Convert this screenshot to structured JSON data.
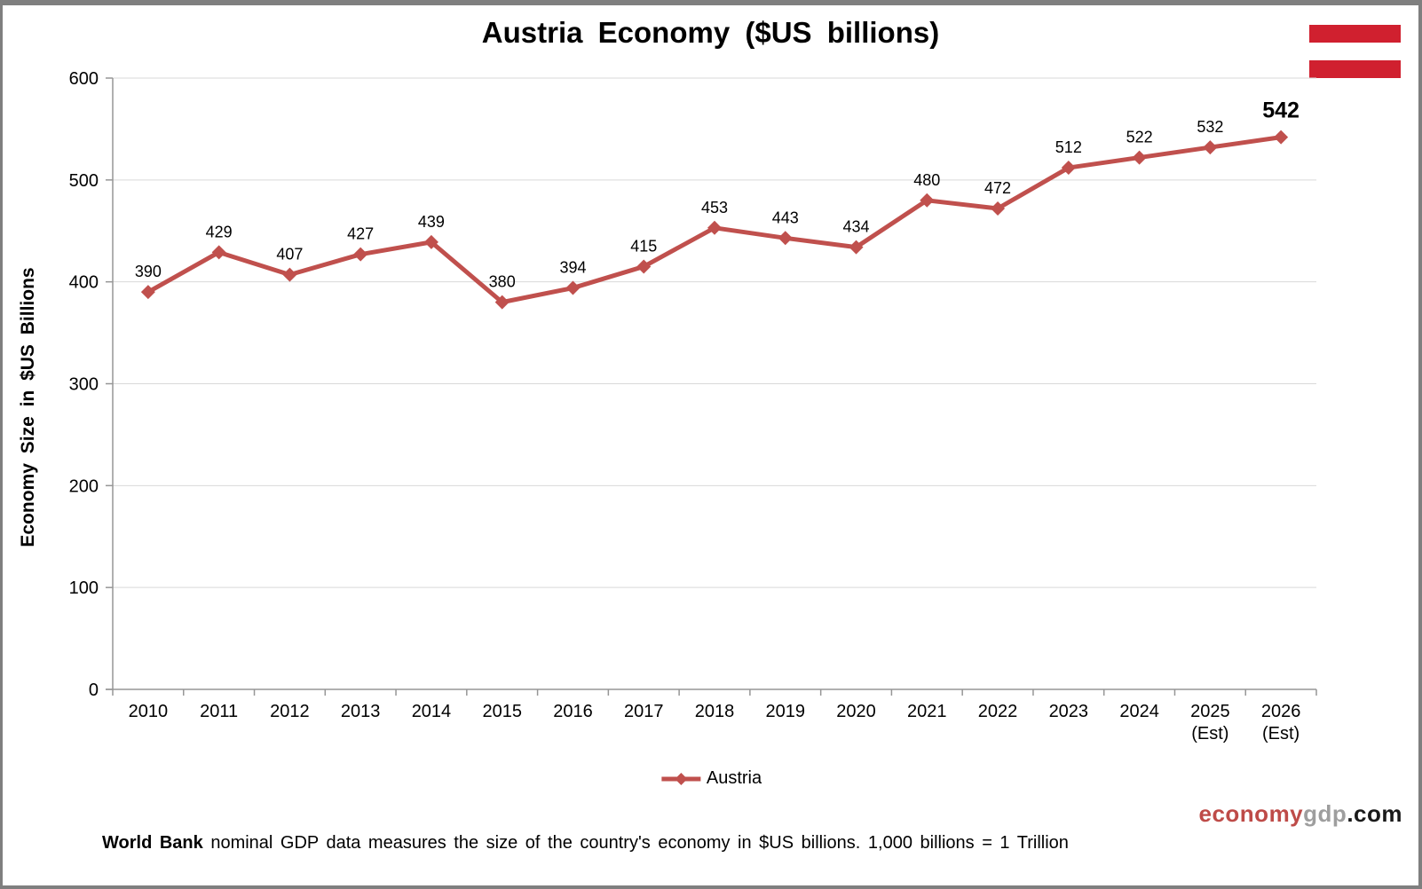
{
  "page": {
    "title": "Austria Economy ($US billions)",
    "flag": {
      "country": "Austria",
      "red": "#d0202f",
      "white": "#ffffff"
    },
    "watermark": {
      "part_economy": "economy",
      "part_gdp": "gdp",
      "part_com": ".com",
      "color_economy": "#be4b48",
      "color_gdp": "#9e9e9e",
      "color_com": "#1a1a1a"
    },
    "footnote": {
      "bold": "World Bank",
      "rest": " nominal GDP data measures the size of the country's economy in $US billions. 1,000 billions = 1 Trillion"
    }
  },
  "chart_data": {
    "type": "line",
    "title": "Austria Economy ($US billions)",
    "ylabel": "Economy Size in $US Billions",
    "xlabel": "",
    "categories": [
      [
        "2010"
      ],
      [
        "2011"
      ],
      [
        "2012"
      ],
      [
        "2013"
      ],
      [
        "2014"
      ],
      [
        "2015"
      ],
      [
        "2016"
      ],
      [
        "2017"
      ],
      [
        "2018"
      ],
      [
        "2019"
      ],
      [
        "2020"
      ],
      [
        "2021"
      ],
      [
        "2022"
      ],
      [
        "2023"
      ],
      [
        "2024"
      ],
      [
        "2025",
        "(Est)"
      ],
      [
        "2026",
        "(Est)"
      ]
    ],
    "series": [
      {
        "name": "Austria",
        "color": "#c0504d",
        "values": [
          390,
          429,
          407,
          427,
          439,
          380,
          394,
          415,
          453,
          443,
          434,
          480,
          472,
          512,
          522,
          532,
          542
        ]
      }
    ],
    "ylim": [
      0,
      600
    ],
    "ytick_step": 100,
    "yticks": [
      0,
      100,
      200,
      300,
      400,
      500,
      600
    ],
    "grid": true,
    "grid_color": "#d9d9d9",
    "axis_color": "#969696",
    "label_color": "#000000",
    "legend_position": "bottom",
    "data_labels": true,
    "last_label_bold": true,
    "marker": "diamond"
  }
}
